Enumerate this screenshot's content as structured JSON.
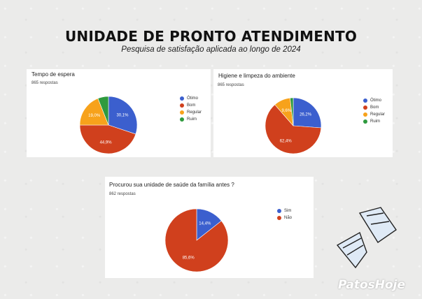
{
  "header": {
    "title": "UNIDADE DE PRONTO ATENDIMENTO",
    "subtitle": "Pesquisa de satisfação aplicada ao longo de 2024"
  },
  "watermark": "PatosHoje",
  "chart_data": [
    {
      "type": "pie",
      "title": "Tempo de espera",
      "subtitle": "865 respostas",
      "legend_position": "right",
      "series": [
        {
          "name": "Ótimo",
          "value": 30.1,
          "label": "30,1%",
          "color": "#3b5fce"
        },
        {
          "name": "Bom",
          "value": 44.9,
          "label": "44,9%",
          "color": "#d0401d"
        },
        {
          "name": "Regular",
          "value": 19.0,
          "label": "19,0%",
          "color": "#f7a21b"
        },
        {
          "name": "Ruim",
          "value": 6.0,
          "label": "",
          "color": "#2f9a3e"
        }
      ]
    },
    {
      "type": "pie",
      "title": "Higiene e limpeza do ambiente",
      "subtitle": "865 respostas",
      "legend_position": "right",
      "series": [
        {
          "name": "Ótimo",
          "value": 26.2,
          "label": "26,2%",
          "color": "#3b5fce"
        },
        {
          "name": "Bom",
          "value": 62.4,
          "label": "62,4%",
          "color": "#d0401d"
        },
        {
          "name": "Regular",
          "value": 9.6,
          "label": "9,6%",
          "color": "#f7a21b"
        },
        {
          "name": "Ruim",
          "value": 1.8,
          "label": "",
          "color": "#2f9a3e"
        }
      ]
    },
    {
      "type": "pie",
      "title": "Procurou sua unidade de saúde da família antes ?",
      "subtitle": "862 respostas",
      "legend_position": "right",
      "series": [
        {
          "name": "Sim",
          "value": 14.4,
          "label": "14,4%",
          "color": "#3b5fce"
        },
        {
          "name": "Não",
          "value": 85.6,
          "label": "85,6%",
          "color": "#d0401d"
        }
      ]
    }
  ]
}
